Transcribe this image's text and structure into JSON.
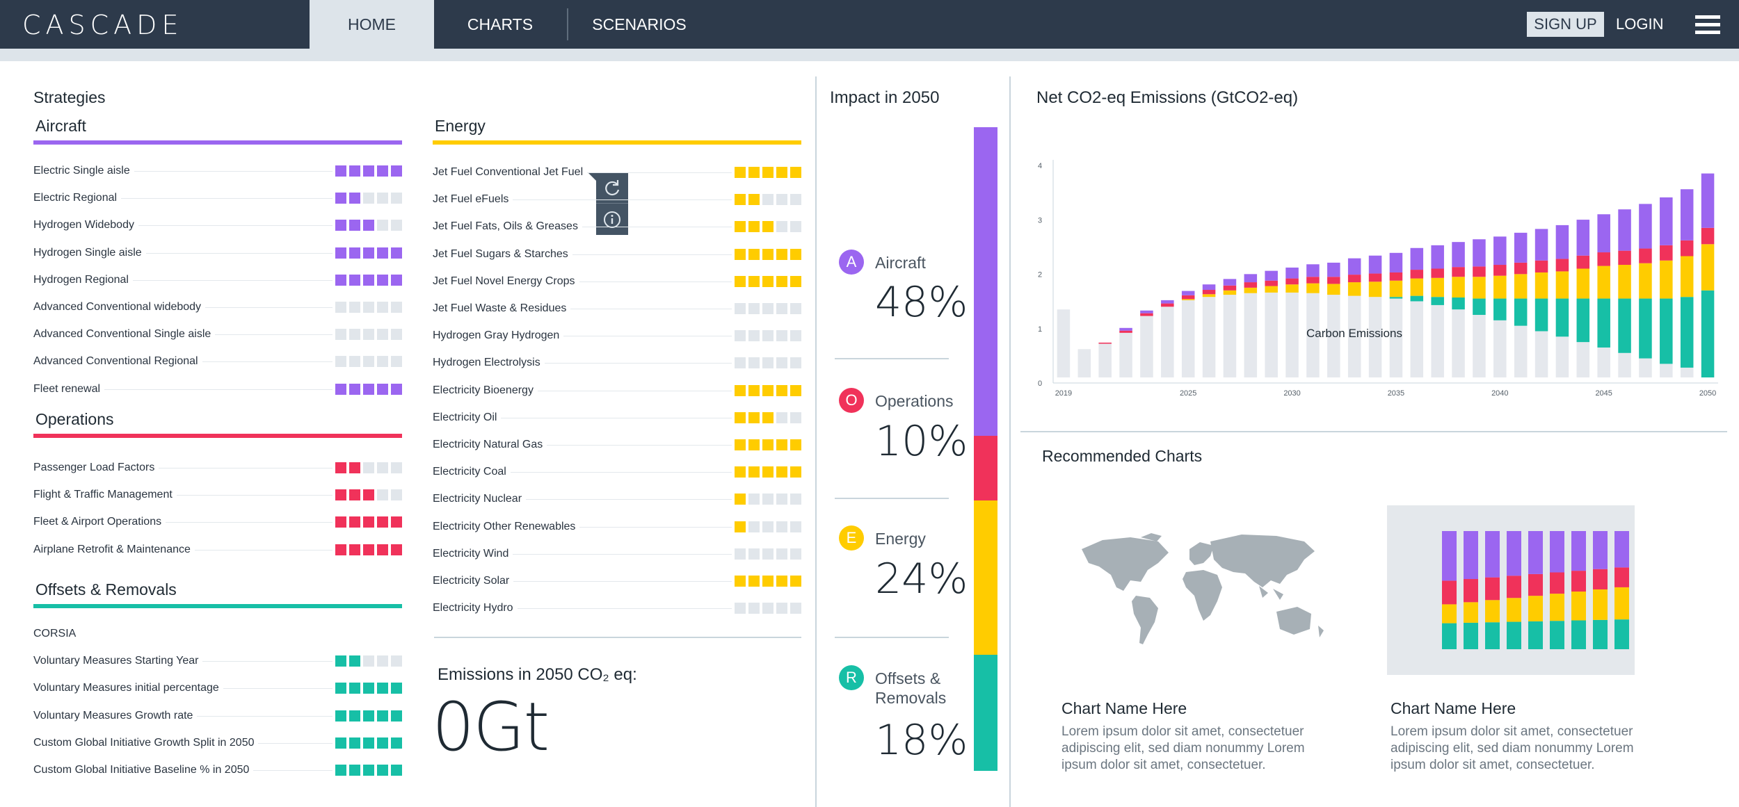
{
  "app": {
    "logo": "CASCADE"
  },
  "nav": {
    "tabs": [
      {
        "label": "HOME",
        "active": true
      },
      {
        "label": "CHARTS",
        "active": false
      },
      {
        "label": "SCENARIOS",
        "active": false
      }
    ],
    "signup": "SIGN UP",
    "login": "LOGIN",
    "menu_icon": "hamburger-icon"
  },
  "strategies": {
    "title": "Strategies",
    "groups": [
      {
        "name": "Aircraft",
        "color": "#9b66f0",
        "items": [
          {
            "label": "Electric Single aisle",
            "level": 5
          },
          {
            "label": "Electric Regional",
            "level": 2
          },
          {
            "label": "Hydrogen Widebody",
            "level": 3
          },
          {
            "label": "Hydrogen Single aisle",
            "level": 5
          },
          {
            "label": "Hydrogen Regional",
            "level": 5
          },
          {
            "label": "Advanced  Conventional widebody",
            "level": 0
          },
          {
            "label": "Advanced  Conventional Single aisle",
            "level": 0
          },
          {
            "label": "Advanced Conventional Regional",
            "level": 0
          },
          {
            "label": "Fleet renewal",
            "level": 5
          }
        ]
      },
      {
        "name": "Operations",
        "color": "#f0325a",
        "items": [
          {
            "label": "Passenger Load Factors",
            "level": 2
          },
          {
            "label": "Flight & Traffic Management",
            "level": 3
          },
          {
            "label": "Fleet & Airport Operations",
            "level": 5
          },
          {
            "label": "Airplane Retrofit & Maintenance",
            "level": 5
          }
        ]
      },
      {
        "name": "Offsets & Removals",
        "color": "#17bfa6",
        "items": [
          {
            "label": "CORSIA",
            "level": null
          },
          {
            "label": "Voluntary  Measures Starting Year",
            "level": 2
          },
          {
            "label": "Voluntary  Measures initial percentage",
            "level": 5
          },
          {
            "label": "Voluntary  Measures Growth rate",
            "level": 5
          },
          {
            "label": "Custom Global Initiative Growth Split in 2050",
            "level": 5
          },
          {
            "label": "Custom Global Initiative Baseline % in 2050",
            "level": 5
          }
        ]
      },
      {
        "name": "Energy",
        "color": "#ffcc00",
        "items": [
          {
            "label": "Jet Fuel Conventional Jet Fuel",
            "level": 5
          },
          {
            "label": "Jet Fuel eFuels",
            "level": 2
          },
          {
            "label": "Jet Fuel Fats, Oils & Greases",
            "level": 3
          },
          {
            "label": "Jet Fuel Sugars & Starches",
            "level": 5
          },
          {
            "label": "Jet Fuel Novel Energy Crops",
            "level": 5
          },
          {
            "label": "Jet Fuel Waste & Residues",
            "level": 0
          },
          {
            "label": "Hydrogen Gray Hydrogen",
            "level": 0
          },
          {
            "label": "Hydrogen Electrolysis",
            "level": 0
          },
          {
            "label": "Electricity Bioenergy",
            "level": 5
          },
          {
            "label": "Electricity Oil",
            "level": 3
          },
          {
            "label": "Electricity Natural Gas",
            "level": 5
          },
          {
            "label": "Electricity Coal",
            "level": 5
          },
          {
            "label": "Electricity Nuclear",
            "level": 1
          },
          {
            "label": "Electricity Other Renewables",
            "level": 1
          },
          {
            "label": "Electricity Wind",
            "level": 0
          },
          {
            "label": "Electricity Solar",
            "level": 5
          },
          {
            "label": "Electricity Hydro",
            "level": 0
          }
        ]
      }
    ],
    "tools": {
      "reset_icon": "refresh-icon",
      "info_icon": "info-icon"
    }
  },
  "emissions": {
    "label": "Emissions in 2050 CO₂ eq:",
    "value": "0Gt"
  },
  "impact": {
    "title": "Impact in 2050",
    "items": [
      {
        "badge": "A",
        "name": "Aircraft",
        "percent": "48%",
        "color": "#9b66f0",
        "share": 0.48
      },
      {
        "badge": "O",
        "name": "Operations",
        "percent": "10%",
        "color": "#f0325a",
        "share": 0.1
      },
      {
        "badge": "E",
        "name": "Energy",
        "percent": "24%",
        "color": "#ffcc00",
        "share": 0.24
      },
      {
        "badge": "R",
        "name": "Offsets & Removals",
        "percent": "18%",
        "color": "#17bfa6",
        "share": 0.18
      }
    ]
  },
  "chart_data": {
    "type": "bar",
    "title": "Net CO2-eq Emissions (GtCO2-eq)",
    "ylim": [
      0,
      4
    ],
    "yticks": [
      "0",
      "1",
      "2",
      "3",
      "4"
    ],
    "xtick_labels": [
      "2019",
      "2025",
      "2030",
      "2035",
      "2040",
      "2045",
      "2050"
    ],
    "annotation": "Carbon Emissions",
    "categories": [
      2019,
      2020,
      2021,
      2022,
      2023,
      2024,
      2025,
      2026,
      2027,
      2028,
      2029,
      2030,
      2031,
      2032,
      2033,
      2034,
      2035,
      2036,
      2037,
      2038,
      2039,
      2040,
      2041,
      2042,
      2043,
      2044,
      2045,
      2046,
      2047,
      2048,
      2049,
      2050
    ],
    "series": [
      {
        "color": "#e5e8ed",
        "values": [
          1.25,
          0.52,
          0.62,
          0.82,
          1.13,
          1.3,
          1.42,
          1.48,
          1.52,
          1.55,
          1.56,
          1.56,
          1.55,
          1.52,
          1.5,
          1.48,
          1.45,
          1.4,
          1.33,
          1.25,
          1.15,
          1.05,
          0.95,
          0.85,
          0.75,
          0.65,
          0.55,
          0.45,
          0.35,
          0.25,
          0.18,
          0.0
        ]
      },
      {
        "color": "#17bfa6",
        "values": [
          0,
          0,
          0,
          0,
          0,
          0,
          0,
          0,
          0,
          0,
          0,
          0,
          0,
          0,
          0,
          0,
          0.03,
          0.1,
          0.15,
          0.22,
          0.3,
          0.4,
          0.5,
          0.6,
          0.7,
          0.8,
          0.9,
          1.0,
          1.1,
          1.2,
          1.3,
          1.6
        ]
      },
      {
        "color": "#ffcc00",
        "values": [
          0,
          0,
          0,
          0,
          0,
          0,
          0.02,
          0.05,
          0.08,
          0.1,
          0.12,
          0.15,
          0.18,
          0.2,
          0.25,
          0.28,
          0.3,
          0.32,
          0.35,
          0.38,
          0.4,
          0.42,
          0.45,
          0.48,
          0.5,
          0.55,
          0.6,
          0.62,
          0.65,
          0.7,
          0.75,
          0.85
        ]
      },
      {
        "color": "#f0325a",
        "values": [
          0,
          0,
          0.02,
          0.04,
          0.05,
          0.06,
          0.07,
          0.08,
          0.09,
          0.1,
          0.1,
          0.11,
          0.12,
          0.13,
          0.14,
          0.15,
          0.15,
          0.16,
          0.17,
          0.18,
          0.19,
          0.2,
          0.21,
          0.22,
          0.23,
          0.24,
          0.25,
          0.26,
          0.27,
          0.28,
          0.29,
          0.3
        ]
      },
      {
        "color": "#9b66f0",
        "values": [
          0,
          0,
          0,
          0.05,
          0.05,
          0.06,
          0.08,
          0.1,
          0.12,
          0.15,
          0.18,
          0.2,
          0.23,
          0.26,
          0.3,
          0.33,
          0.36,
          0.4,
          0.43,
          0.46,
          0.5,
          0.52,
          0.55,
          0.58,
          0.62,
          0.66,
          0.7,
          0.76,
          0.82,
          0.88,
          0.94,
          1.0
        ]
      }
    ]
  },
  "recommended": {
    "title": "Recommended Charts",
    "cards": [
      {
        "name": "Chart Name Here",
        "desc": "Lorem ipsum dolor sit amet, consectetuer adipiscing elit, sed diam nonummy Lorem ipsum dolor sit amet, consectetuer.",
        "thumb_icon": "world-map-icon"
      },
      {
        "name": "Chart Name Here",
        "desc": "Lorem ipsum dolor sit amet, consectetuer adipiscing elit, sed diam nonummy Lorem ipsum dolor sit amet, consectetuer.",
        "thumb_icon": "stacked-bar-chart-icon"
      }
    ]
  }
}
